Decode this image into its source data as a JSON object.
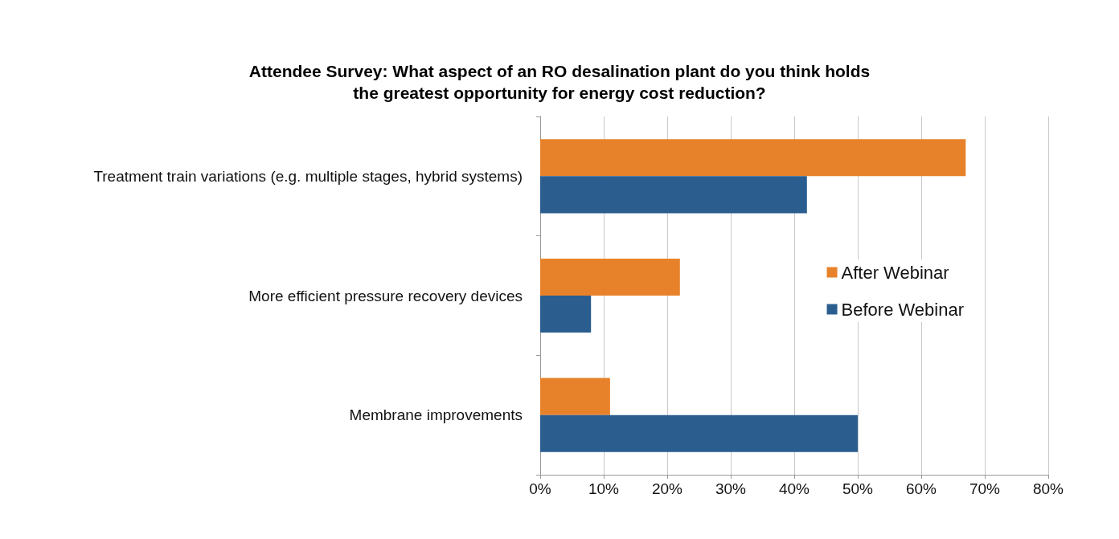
{
  "chart_data": {
    "type": "bar",
    "orientation": "horizontal",
    "title": "Attendee Survey: What aspect of an RO desalination plant do you think holds\nthe greatest opportunity for energy cost reduction?",
    "categories": [
      "Treatment train variations (e.g. multiple stages, hybrid systems)",
      "More efficient pressure recovery devices",
      "Membrane improvements"
    ],
    "series": [
      {
        "name": "After Webinar",
        "color": "#e8822a",
        "values": [
          67,
          22,
          11
        ]
      },
      {
        "name": "Before Webinar",
        "color": "#2b5e8f",
        "values": [
          42,
          8,
          50
        ]
      }
    ],
    "xlim": [
      0,
      80
    ],
    "xticks": [
      {
        "value": 0,
        "label": "0%"
      },
      {
        "value": 10,
        "label": "10%"
      },
      {
        "value": 20,
        "label": "20%"
      },
      {
        "value": 30,
        "label": "30%"
      },
      {
        "value": 40,
        "label": "40%"
      },
      {
        "value": 50,
        "label": "50%"
      },
      {
        "value": 60,
        "label": "60%"
      },
      {
        "value": 70,
        "label": "70%"
      },
      {
        "value": 80,
        "label": "80%"
      }
    ],
    "grid": "x",
    "legend": "right"
  }
}
